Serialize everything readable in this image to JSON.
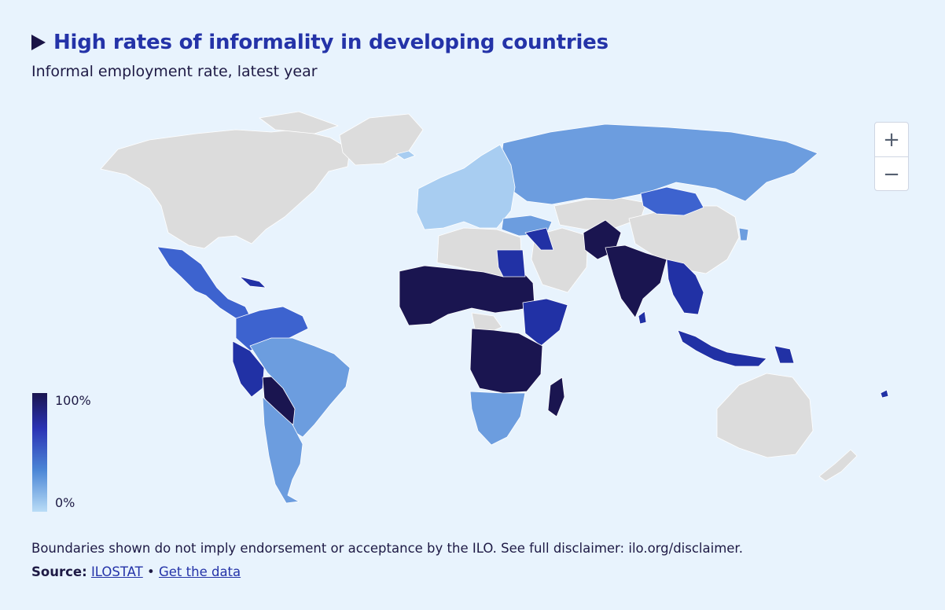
{
  "title": "High rates of informality in developing countries",
  "subtitle": "Informal employment rate, latest year",
  "zoom": {
    "in_label": "+",
    "out_label": "−"
  },
  "legend": {
    "max_label": "100%",
    "min_label": "0%",
    "colors": [
      "#1a1550",
      "#2b33b5",
      "#4b86d6",
      "#b9dcf6"
    ]
  },
  "colors": {
    "no_data": "#dcdcdc",
    "very_high": "#1a1550",
    "high": "#2131a5",
    "medium_high": "#3d63cf",
    "medium": "#6c9ddf",
    "low": "#a8cdf1",
    "background": "#e8f3fd"
  },
  "footer": {
    "disclaimer": "Boundaries shown do not imply endorsement or acceptance by the ILO. See full disclaimer: ilo.org/disclaimer.",
    "source_label": "Source:",
    "source_link": "ILOSTAT",
    "separator": " • ",
    "data_link": "Get the data"
  }
}
